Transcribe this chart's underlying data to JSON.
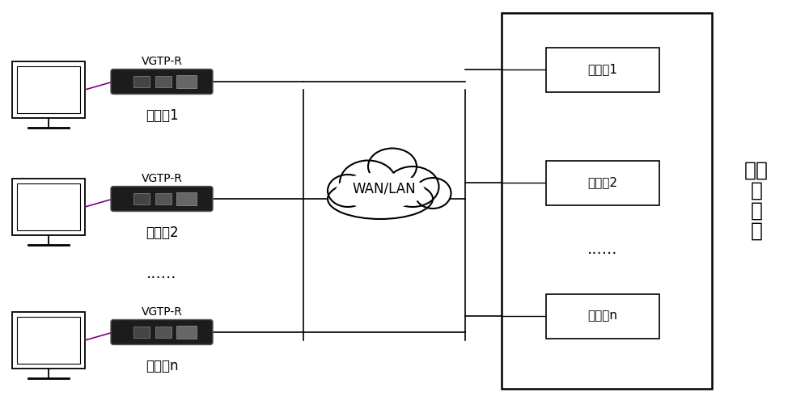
{
  "bg_color": "#ffffff",
  "line_color": "#000000",
  "purple_line": "#800080",
  "cloud_label": "WAN/LAN",
  "server_label": "云端\n服\n务\n器",
  "vgtp_labels": [
    "VGTP-R",
    "VGTP-R",
    "VGTP-R"
  ],
  "zero_labels": [
    "零终端1",
    "零终端2",
    "零终端n"
  ],
  "vm_labels": [
    "虚拟机1",
    "虚拟机2",
    "虚拟机n"
  ],
  "dots_left": "......",
  "dots_right": "......",
  "font_size_label": 12,
  "font_size_vgtp": 10,
  "font_size_cloud": 12,
  "font_size_server": 18,
  "font_size_vm": 11,
  "font_size_dots": 14
}
